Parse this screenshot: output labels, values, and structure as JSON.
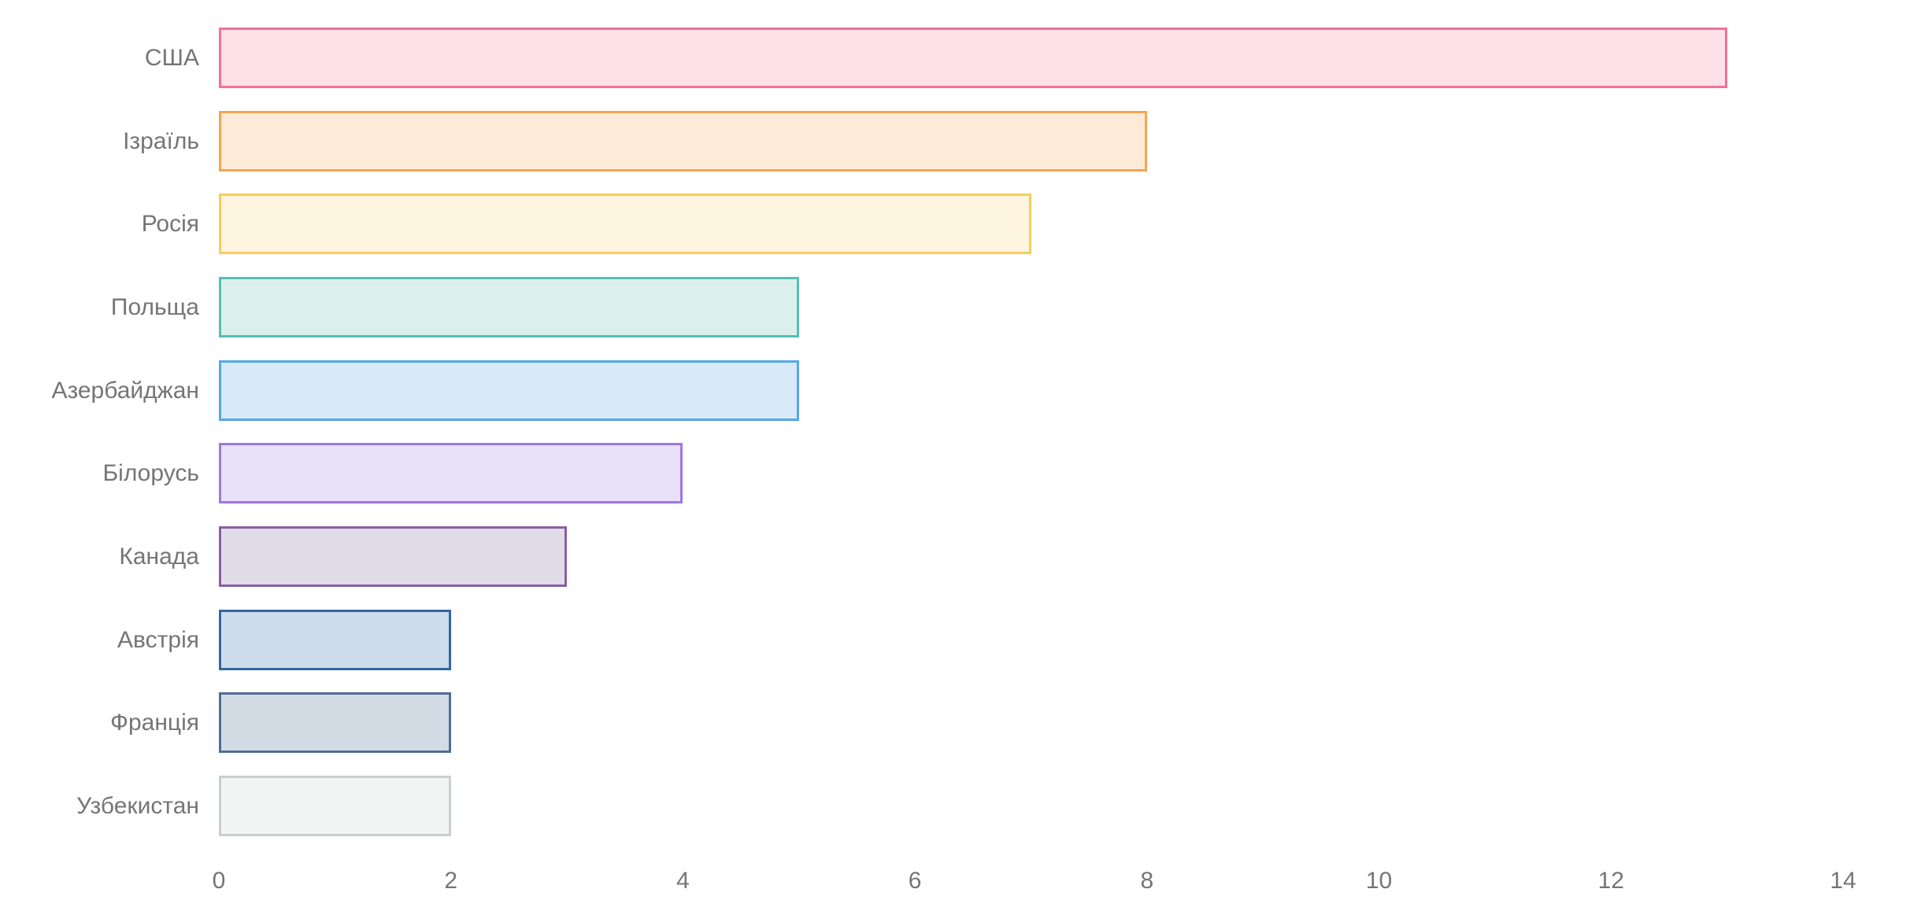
{
  "chart_data": {
    "type": "bar",
    "orientation": "horizontal",
    "title": "",
    "xlabel": "",
    "ylabel": "",
    "grid": false,
    "legend": false,
    "background_color": "#ffffff",
    "text_color": "#757575",
    "categories": [
      "США",
      "Ізраїль",
      "Росія",
      "Польща",
      "Азербайджан",
      "Білорусь",
      "Канада",
      "Австрія",
      "Франція",
      "Узбекистан"
    ],
    "values": [
      13,
      8,
      7,
      5,
      5,
      4,
      3,
      2,
      2,
      2
    ],
    "bar_colors": [
      {
        "fill": "#FDE0E8",
        "border": "#F0719B"
      },
      {
        "fill": "#FDEBDA",
        "border": "#F7A44F"
      },
      {
        "fill": "#FDF5DF",
        "border": "#F9CD5A"
      },
      {
        "fill": "#DBF0ED",
        "border": "#55BFB7"
      },
      {
        "fill": "#D8EAF8",
        "border": "#53A9E6"
      },
      {
        "fill": "#E8E1F9",
        "border": "#A077E3"
      },
      {
        "fill": "#E2DCE9",
        "border": "#87609F"
      },
      {
        "fill": "#CFDCEB",
        "border": "#3365A6"
      },
      {
        "fill": "#D3DCE5",
        "border": "#4E6E93"
      },
      {
        "fill": "#F2F5F3",
        "border": "#C9CFCF"
      }
    ],
    "xlim": [
      0,
      14
    ],
    "x_ticks": [
      "0",
      "2",
      "4",
      "6",
      "8",
      "10",
      "12",
      "14"
    ]
  }
}
